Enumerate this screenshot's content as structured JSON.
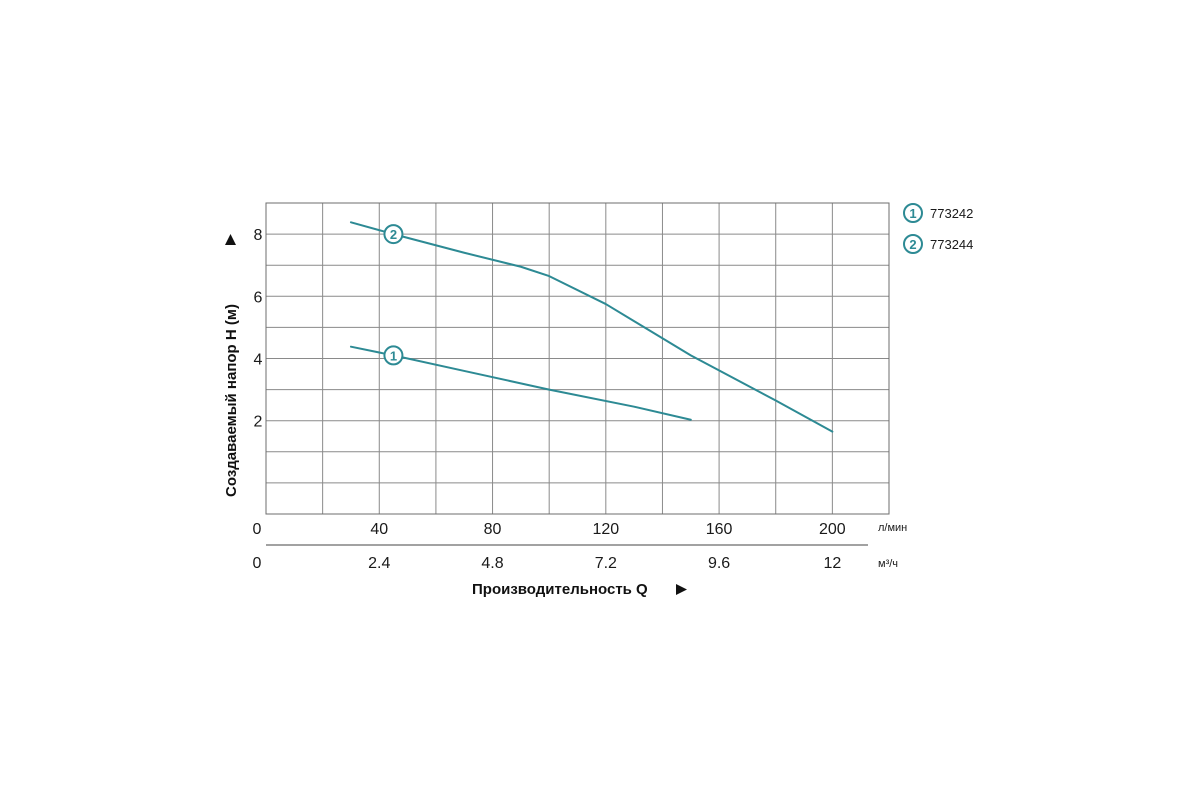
{
  "chart_data": {
    "type": "line",
    "xlabel": "Производительность Q",
    "ylabel": "Создаваемый напор H (м)",
    "x_unit": "л/мин",
    "x2_unit": "м³/ч",
    "xlim": [
      0,
      220
    ],
    "ylim": [
      -1,
      9
    ],
    "x_ticks": [
      "0",
      "40",
      "80",
      "120",
      "160",
      "200"
    ],
    "x_tick_values": [
      0,
      40,
      80,
      120,
      160,
      200
    ],
    "x2_ticks": [
      "0",
      "2.4",
      "4.8",
      "7.2",
      "9.6",
      "12"
    ],
    "y_ticks": [
      "2",
      "4",
      "6",
      "8"
    ],
    "y_tick_values": [
      2,
      4,
      6,
      8
    ],
    "grid": true,
    "legend_position": "top-right",
    "line_color": "#2d8a94",
    "series": [
      {
        "name": "773242",
        "marker": "1",
        "x": [
          30,
          45,
          70,
          100,
          130,
          150
        ],
        "y": [
          4.38,
          4.1,
          3.6,
          3.0,
          2.45,
          2.03
        ]
      },
      {
        "name": "773244",
        "marker": "2",
        "x": [
          30,
          45,
          70,
          90,
          100,
          120,
          150,
          180,
          200
        ],
        "y": [
          8.38,
          8.0,
          7.4,
          6.95,
          6.65,
          5.75,
          4.1,
          2.65,
          1.65
        ]
      }
    ]
  }
}
